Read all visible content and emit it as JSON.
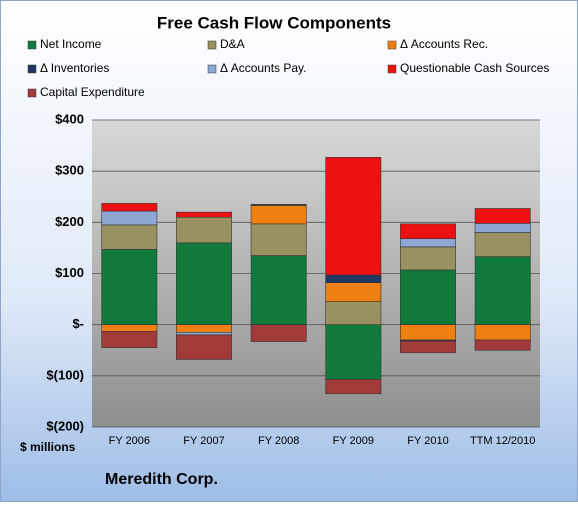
{
  "chart_data": {
    "type": "stacked-bar",
    "title": "Free Cash Flow Components",
    "categories": [
      "FY 2006",
      "FY 2007",
      "FY 2008",
      "FY 2009",
      "FY 2010",
      "TTM 12/2010"
    ],
    "series": [
      {
        "name": "Net Income",
        "color": "#0f7a3a",
        "values": [
          147,
          160,
          135,
          -107,
          107,
          133
        ]
      },
      {
        "name": "D&A",
        "color": "#9a9160",
        "values": [
          48,
          50,
          62,
          45,
          45,
          47
        ]
      },
      {
        "name": "Δ Accounts Rec.",
        "color": "#f07f12",
        "values": [
          -13,
          -15,
          36,
          37,
          -30,
          -30
        ]
      },
      {
        "name": "Δ Inventories",
        "color": "#1f3864",
        "values": [
          0,
          0,
          2,
          15,
          -2,
          0
        ]
      },
      {
        "name": "Δ Accounts Pay.",
        "color": "#8ea6d4",
        "values": [
          27,
          -5,
          0,
          0,
          16,
          18
        ]
      },
      {
        "name": "Questionable Cash Sources",
        "color": "#ee1111",
        "values": [
          15,
          10,
          0,
          230,
          29,
          29
        ]
      },
      {
        "name": "Capital Expenditure",
        "color": "#a33a3a",
        "values": [
          -32,
          -48,
          -33,
          -28,
          -23,
          -20
        ]
      }
    ],
    "ylim": [
      -200,
      400
    ],
    "yticks": [
      {
        "value": -200,
        "label": "$(200)"
      },
      {
        "value": -100,
        "label": "$(100)"
      },
      {
        "value": 0,
        "label": "$-"
      },
      {
        "value": 100,
        "label": "$100"
      },
      {
        "value": 200,
        "label": "$200"
      },
      {
        "value": 300,
        "label": "$300"
      },
      {
        "value": 400,
        "label": "$400"
      }
    ],
    "grid": true,
    "y_axis_label": "$ millions",
    "annotation": "Meredith Corp."
  }
}
